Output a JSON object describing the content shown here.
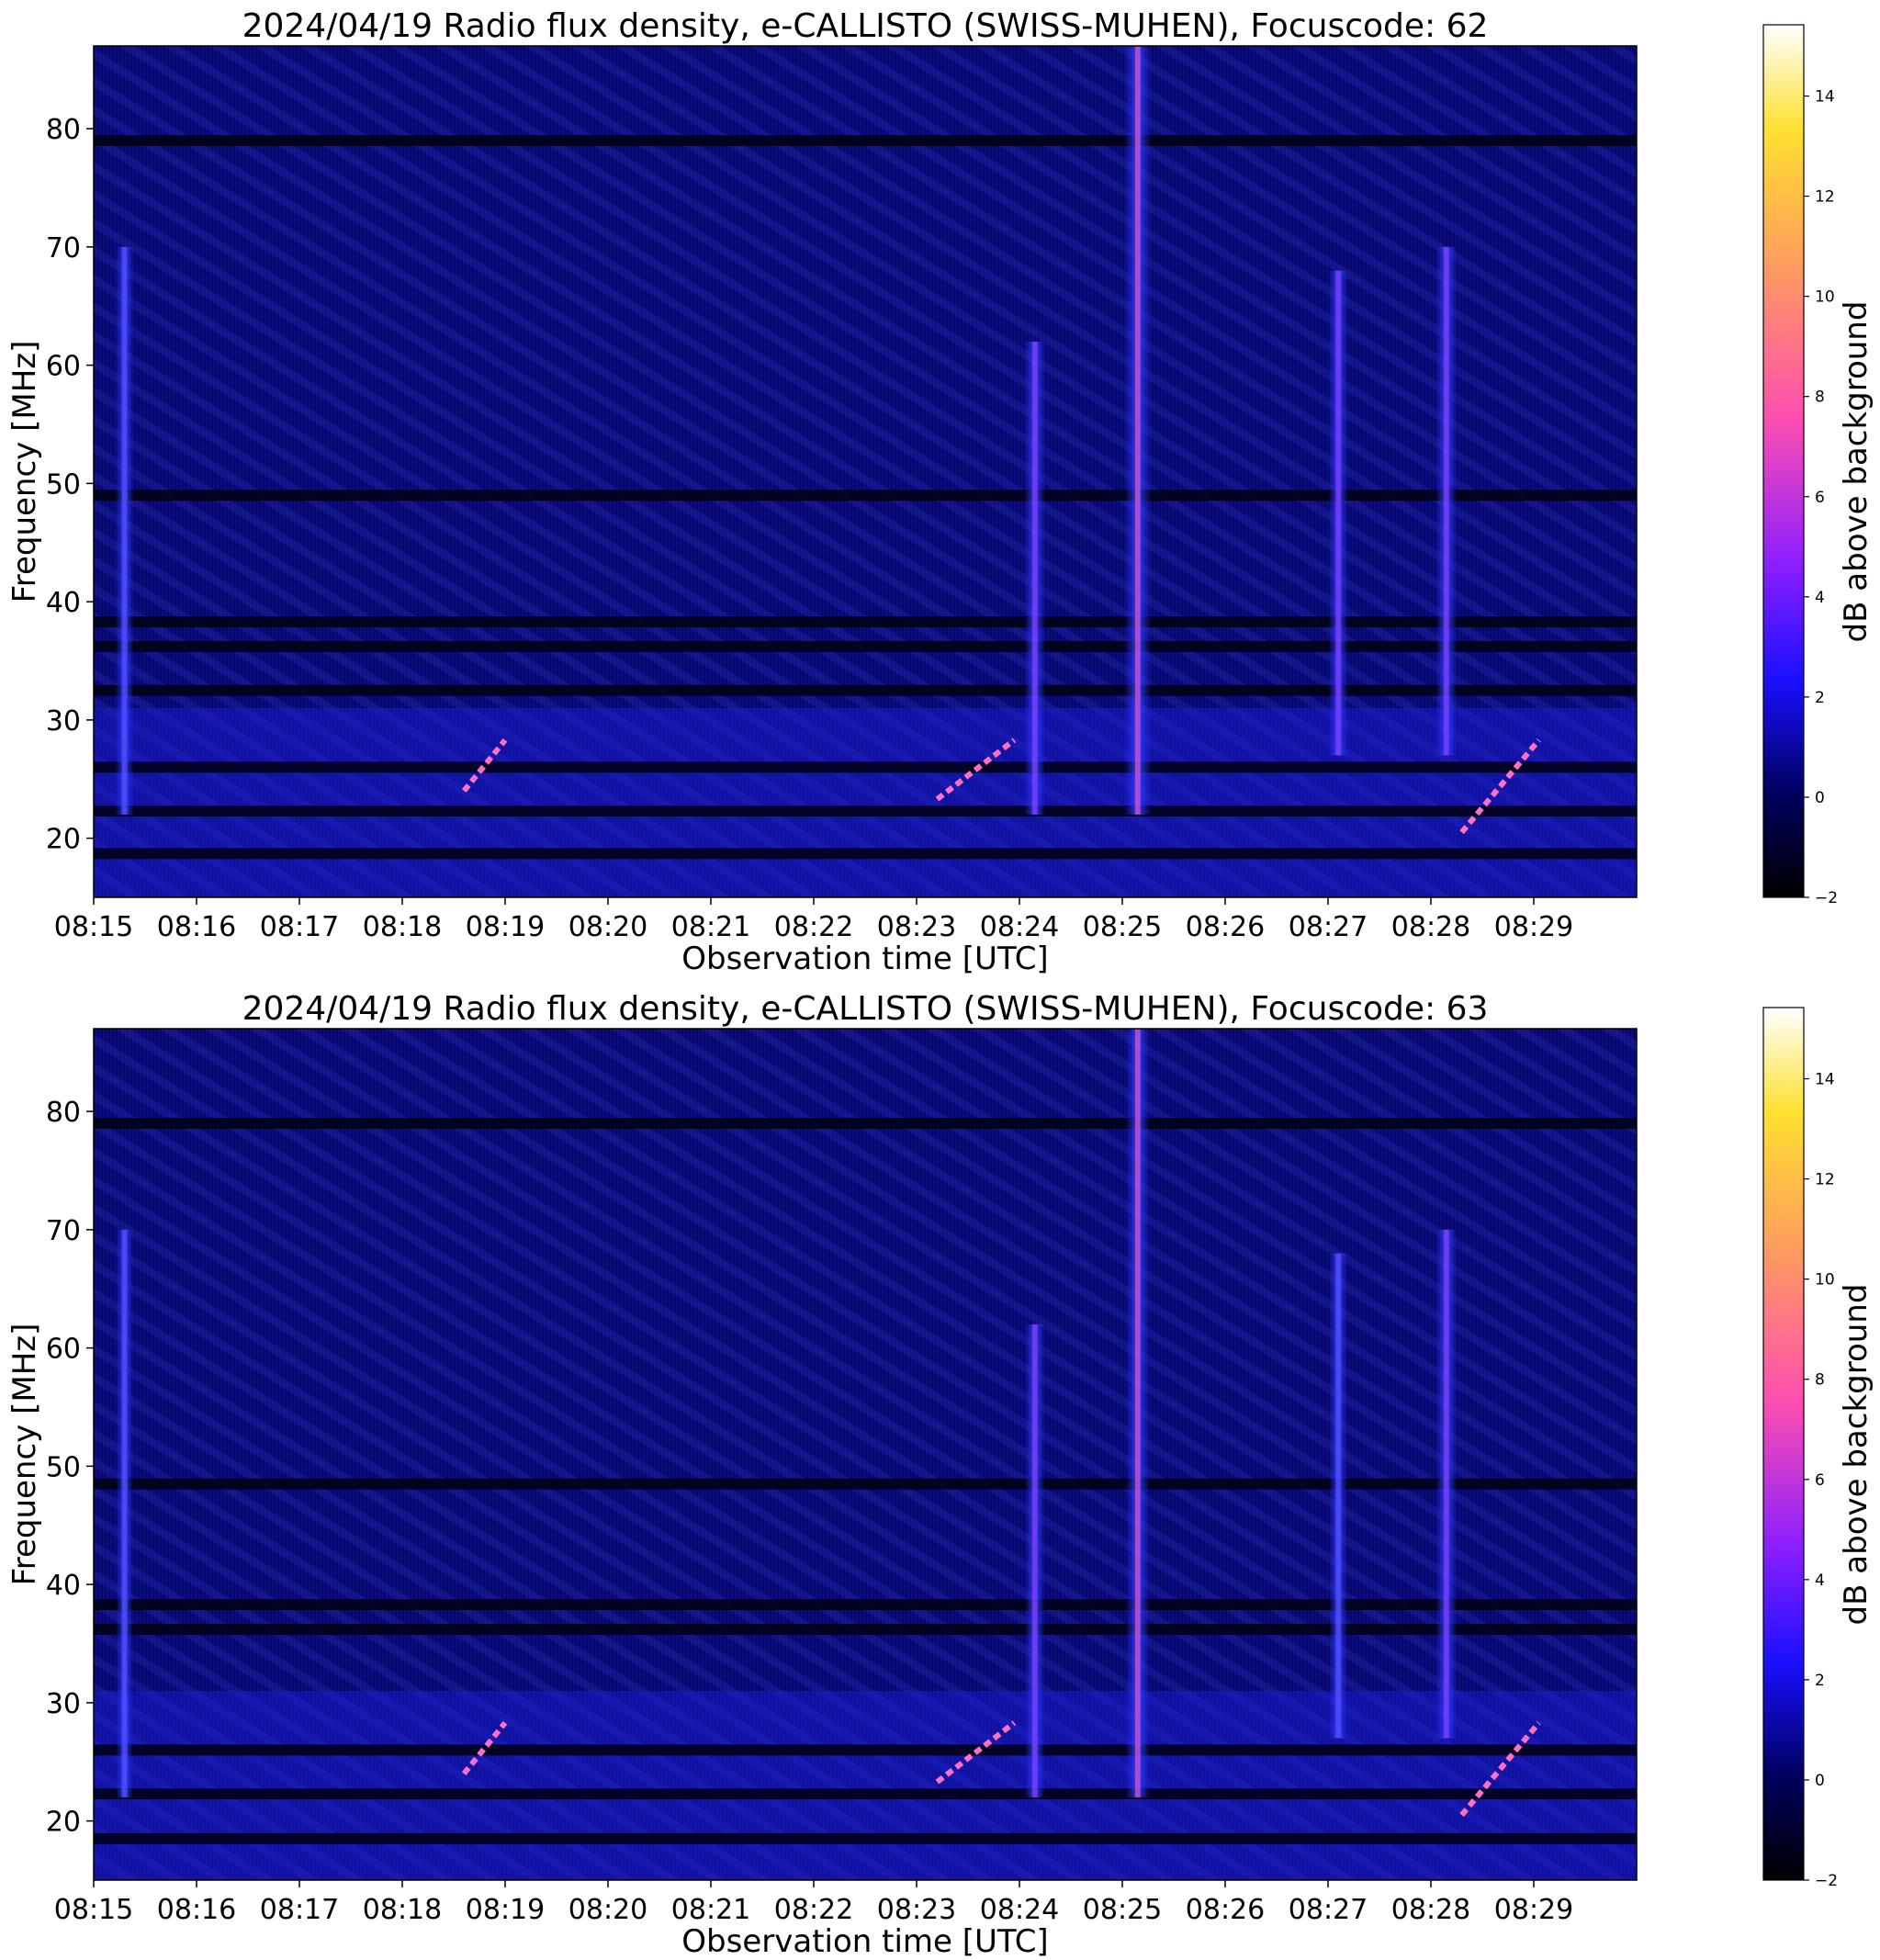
{
  "chart_data": [
    {
      "type": "heatmap",
      "title": "2024/04/19  Radio flux density, e-CALLISTO (SWISS-MUHEN), Focuscode: 62",
      "xlabel": "Observation time [UTC]",
      "ylabel": "Frequency [MHz]",
      "x_ticks": [
        "08:15",
        "08:16",
        "08:17",
        "08:18",
        "08:19",
        "08:20",
        "08:21",
        "08:22",
        "08:23",
        "08:24",
        "08:25",
        "08:26",
        "08:27",
        "08:28",
        "08:29"
      ],
      "xlim_minutes": [
        0,
        15
      ],
      "y_ticks": [
        20,
        30,
        40,
        50,
        60,
        70,
        80
      ],
      "ylim": [
        15,
        87
      ],
      "colorbar": {
        "label": "dB above background",
        "ticks": [
          -2,
          0,
          2,
          4,
          6,
          8,
          10,
          12,
          14
        ],
        "range": [
          -2,
          15
        ],
        "colormap": "gnuplot2"
      },
      "features": {
        "dark_bands_mhz": [
          79,
          49,
          38.3,
          36.2,
          32.5,
          26,
          22.3,
          18.7
        ],
        "type_iii_bursts": [
          {
            "t_min": 0.3,
            "fmin": 22,
            "fmax": 70,
            "peak": 4
          },
          {
            "t_min": 9.15,
            "fmin": 22,
            "fmax": 62,
            "peak": 6
          },
          {
            "t_min": 10.15,
            "fmin": 22,
            "fmax": 87,
            "peak": 10
          },
          {
            "t_min": 12.1,
            "fmin": 27,
            "fmax": 68,
            "peak": 5
          },
          {
            "t_min": 13.15,
            "fmin": 27,
            "fmax": 70,
            "peak": 6
          }
        ],
        "drift_features": [
          {
            "t0": 3.6,
            "f0": 24,
            "t1": 4.0,
            "f1": 28.3
          },
          {
            "t0": 8.2,
            "f0": 23.3,
            "t1": 8.95,
            "f1": 28.3
          },
          {
            "t0": 13.3,
            "f0": 20.5,
            "t1": 14.05,
            "f1": 28.3
          }
        ]
      }
    },
    {
      "type": "heatmap",
      "title": "2024/04/19  Radio flux density, e-CALLISTO (SWISS-MUHEN), Focuscode: 63",
      "xlabel": "Observation time [UTC]",
      "ylabel": "Frequency [MHz]",
      "x_ticks": [
        "08:15",
        "08:16",
        "08:17",
        "08:18",
        "08:19",
        "08:20",
        "08:21",
        "08:22",
        "08:23",
        "08:24",
        "08:25",
        "08:26",
        "08:27",
        "08:28",
        "08:29"
      ],
      "xlim_minutes": [
        0,
        15
      ],
      "y_ticks": [
        20,
        30,
        40,
        50,
        60,
        70,
        80
      ],
      "ylim": [
        15,
        87
      ],
      "colorbar": {
        "label": "dB above background",
        "ticks": [
          -2,
          0,
          2,
          4,
          6,
          8,
          10,
          12,
          14
        ],
        "range": [
          -2,
          15
        ],
        "colormap": "gnuplot2"
      },
      "features": {
        "dark_bands_mhz": [
          79,
          48.5,
          38.3,
          36.2,
          26,
          22.3,
          18.5
        ],
        "type_iii_bursts": [
          {
            "t_min": 0.3,
            "fmin": 22,
            "fmax": 70,
            "peak": 3
          },
          {
            "t_min": 9.15,
            "fmin": 22,
            "fmax": 62,
            "peak": 5
          },
          {
            "t_min": 10.15,
            "fmin": 22,
            "fmax": 87,
            "peak": 8
          },
          {
            "t_min": 12.1,
            "fmin": 27,
            "fmax": 68,
            "peak": 4
          },
          {
            "t_min": 13.15,
            "fmin": 27,
            "fmax": 70,
            "peak": 6
          }
        ],
        "drift_features": [
          {
            "t0": 3.6,
            "f0": 24,
            "t1": 4.0,
            "f1": 28.3
          },
          {
            "t0": 8.2,
            "f0": 23.3,
            "t1": 8.95,
            "f1": 28.3
          },
          {
            "t0": 13.3,
            "f0": 20.5,
            "t1": 14.05,
            "f1": 28.3
          }
        ]
      }
    }
  ]
}
